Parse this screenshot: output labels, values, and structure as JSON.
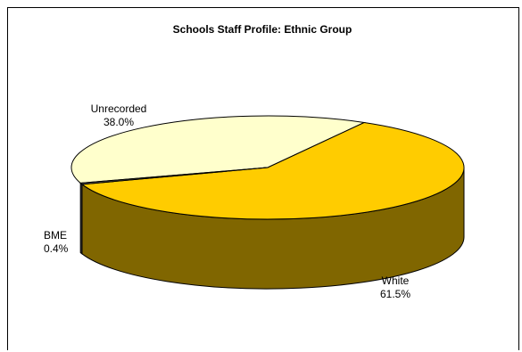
{
  "chart_data": {
    "type": "pie",
    "title": "Schools Staff Profile: Ethnic Group",
    "three_d": true,
    "slices": [
      {
        "label": "Unrecorded",
        "value": 38.0,
        "value_label": "38.0%",
        "color": "#FFFFCC",
        "side_color": "#D9D9A6"
      },
      {
        "label": "White",
        "value": 61.5,
        "value_label": "61.5%",
        "color": "#FFCC00",
        "side_color": "#806600"
      },
      {
        "label": "BME",
        "value": 0.4,
        "value_label": "0.4%",
        "color": "#808080",
        "side_color": "#404040"
      }
    ]
  }
}
